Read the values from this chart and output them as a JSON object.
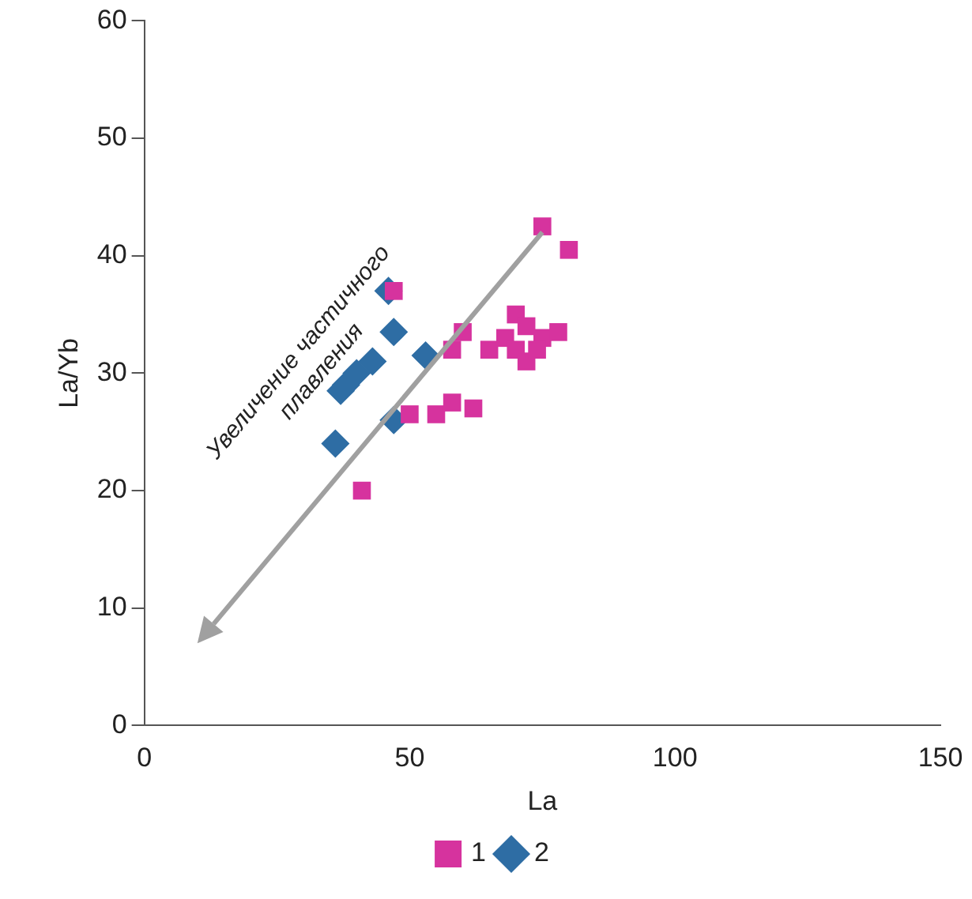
{
  "chart_data": {
    "type": "scatter",
    "xlabel": "La",
    "ylabel": "La/Yb",
    "xlim": [
      0,
      150
    ],
    "xticks": [
      0,
      50,
      100,
      150
    ],
    "ylim": [
      0,
      60
    ],
    "yticks": [
      0,
      10,
      20,
      30,
      40,
      50,
      60
    ],
    "grid": false,
    "legend": "bottom",
    "annotations": [
      "Увеличение частичного плавления"
    ],
    "series": [
      {
        "name": "1",
        "color": "#d6339e",
        "marker": "square",
        "x": [
          41,
          47,
          50,
          55,
          58,
          62,
          60,
          58,
          65,
          68,
          70,
          72,
          72,
          75,
          78,
          70,
          74,
          75,
          80
        ],
        "values": [
          20,
          37,
          26.5,
          26.5,
          27.5,
          27,
          33.5,
          32,
          32,
          33,
          35,
          34,
          31,
          33,
          33.5,
          32,
          32,
          42.5,
          40.5
        ]
      },
      {
        "name": "2",
        "color": "#2e6da4",
        "marker": "diamond",
        "x": [
          36,
          37,
          38,
          40,
          43,
          46,
          47,
          47,
          53
        ],
        "values": [
          24,
          28.5,
          29,
          30,
          31,
          37,
          33.5,
          26,
          31.5
        ]
      }
    ]
  }
}
